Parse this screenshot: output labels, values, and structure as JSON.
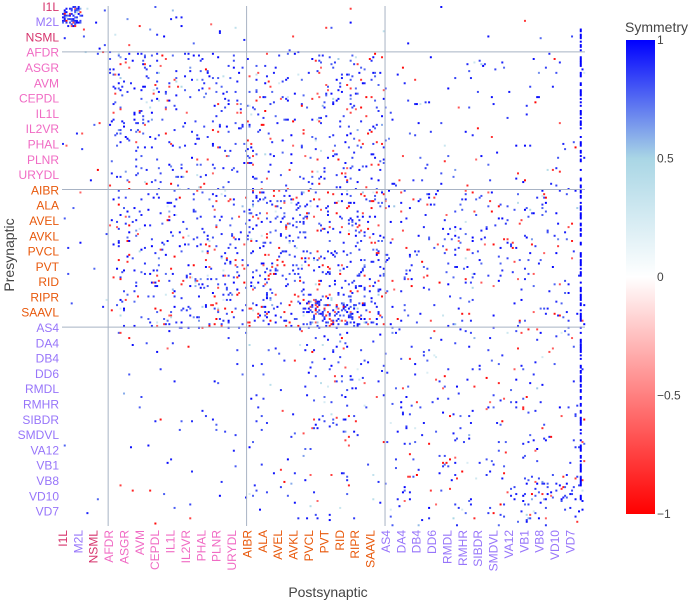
{
  "chart_data": {
    "type": "heatmap",
    "title": "",
    "xlabel": "Postsynaptic",
    "ylabel": "Presynaptic",
    "colorbar": {
      "title": "Symmetry",
      "range": [
        -1,
        1
      ],
      "ticks": [
        "1",
        "0.5",
        "0",
        "−0.5",
        "−1"
      ],
      "tick_values": [
        1,
        0.5,
        0,
        -0.5,
        -1
      ],
      "colorscale": [
        {
          "value": -1,
          "color": "#ff0000"
        },
        {
          "value": 0,
          "color": "#ffffff"
        },
        {
          "value": 0.5,
          "color": "#a9d6e5"
        },
        {
          "value": 1,
          "color": "#0000ff"
        }
      ]
    },
    "group_colors": {
      "pharyngeal": "#d6336c",
      "sensory": "#f06bc4",
      "inter": "#e8590c",
      "motor": "#9775fa"
    },
    "x_ticks": [
      {
        "label": "I1L",
        "group": "pharyngeal"
      },
      {
        "label": "M2L",
        "group": "motor"
      },
      {
        "label": "NSML",
        "group": "pharyngeal"
      },
      {
        "label": "AFDR",
        "group": "sensory"
      },
      {
        "label": "ASGR",
        "group": "sensory"
      },
      {
        "label": "AVM",
        "group": "sensory"
      },
      {
        "label": "CEPDL",
        "group": "sensory"
      },
      {
        "label": "IL1L",
        "group": "sensory"
      },
      {
        "label": "IL2VR",
        "group": "sensory"
      },
      {
        "label": "PHAL",
        "group": "sensory"
      },
      {
        "label": "PLNR",
        "group": "sensory"
      },
      {
        "label": "URYDL",
        "group": "sensory"
      },
      {
        "label": "AIBR",
        "group": "inter"
      },
      {
        "label": "ALA",
        "group": "inter"
      },
      {
        "label": "AVEL",
        "group": "inter"
      },
      {
        "label": "AVKL",
        "group": "inter"
      },
      {
        "label": "PVCL",
        "group": "inter"
      },
      {
        "label": "PVT",
        "group": "inter"
      },
      {
        "label": "RID",
        "group": "inter"
      },
      {
        "label": "RIPR",
        "group": "inter"
      },
      {
        "label": "SAAVL",
        "group": "inter"
      },
      {
        "label": "AS4",
        "group": "motor"
      },
      {
        "label": "DA4",
        "group": "motor"
      },
      {
        "label": "DB4",
        "group": "motor"
      },
      {
        "label": "DD6",
        "group": "motor"
      },
      {
        "label": "RMDL",
        "group": "motor"
      },
      {
        "label": "RMHR",
        "group": "motor"
      },
      {
        "label": "SIBDR",
        "group": "motor"
      },
      {
        "label": "SMDVL",
        "group": "motor"
      },
      {
        "label": "VA12",
        "group": "motor"
      },
      {
        "label": "VB1",
        "group": "motor"
      },
      {
        "label": "VB8",
        "group": "motor"
      },
      {
        "label": "VD10",
        "group": "motor"
      },
      {
        "label": "VD7",
        "group": "motor"
      }
    ],
    "y_ticks": [
      {
        "label": "I1L",
        "group": "pharyngeal"
      },
      {
        "label": "M2L",
        "group": "motor"
      },
      {
        "label": "NSML",
        "group": "pharyngeal"
      },
      {
        "label": "AFDR",
        "group": "sensory"
      },
      {
        "label": "ASGR",
        "group": "sensory"
      },
      {
        "label": "AVM",
        "group": "sensory"
      },
      {
        "label": "CEPDL",
        "group": "sensory"
      },
      {
        "label": "IL1L",
        "group": "sensory"
      },
      {
        "label": "IL2VR",
        "group": "sensory"
      },
      {
        "label": "PHAL",
        "group": "sensory"
      },
      {
        "label": "PLNR",
        "group": "sensory"
      },
      {
        "label": "URYDL",
        "group": "sensory"
      },
      {
        "label": "AIBR",
        "group": "inter"
      },
      {
        "label": "ALA",
        "group": "inter"
      },
      {
        "label": "AVEL",
        "group": "inter"
      },
      {
        "label": "AVKL",
        "group": "inter"
      },
      {
        "label": "PVCL",
        "group": "inter"
      },
      {
        "label": "PVT",
        "group": "inter"
      },
      {
        "label": "RID",
        "group": "inter"
      },
      {
        "label": "RIPR",
        "group": "inter"
      },
      {
        "label": "SAAVL",
        "group": "inter"
      },
      {
        "label": "AS4",
        "group": "motor"
      },
      {
        "label": "DA4",
        "group": "motor"
      },
      {
        "label": "DB4",
        "group": "motor"
      },
      {
        "label": "DD6",
        "group": "motor"
      },
      {
        "label": "RMDL",
        "group": "motor"
      },
      {
        "label": "RMHR",
        "group": "motor"
      },
      {
        "label": "SIBDR",
        "group": "motor"
      },
      {
        "label": "SMDVL",
        "group": "motor"
      },
      {
        "label": "VA12",
        "group": "motor"
      },
      {
        "label": "VB1",
        "group": "motor"
      },
      {
        "label": "VB8",
        "group": "motor"
      },
      {
        "label": "VD10",
        "group": "motor"
      },
      {
        "label": "VD7",
        "group": "motor"
      }
    ],
    "grid": true,
    "group_boundaries_after": [
      "NSML",
      "URYDL",
      "SAAVL"
    ]
  }
}
